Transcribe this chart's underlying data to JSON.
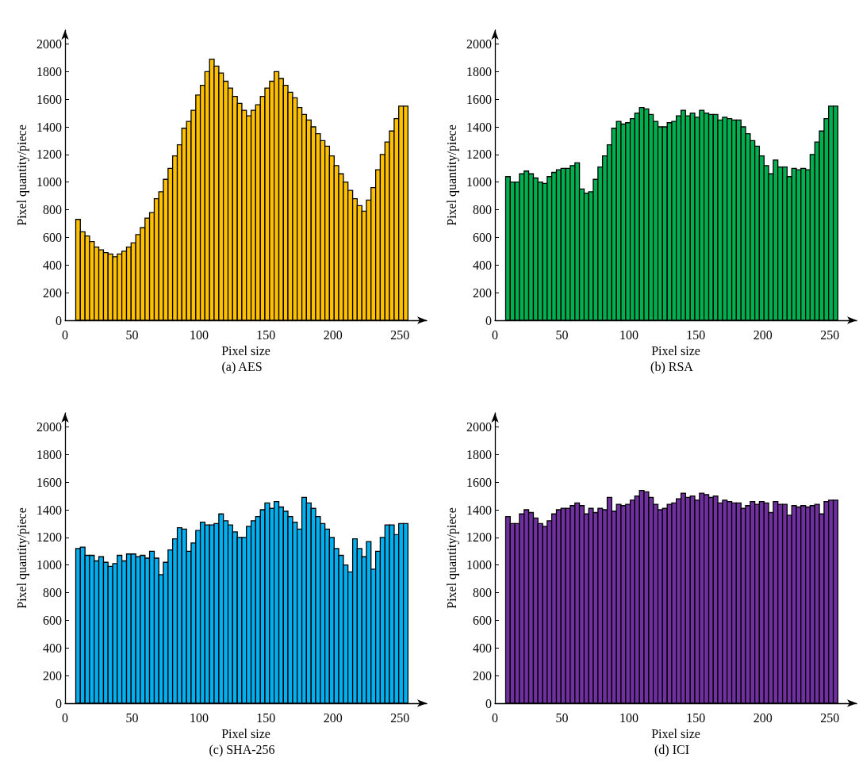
{
  "chart_data": [
    {
      "type": "histogram",
      "title": "(a) AES",
      "xlabel": "Pixel size",
      "ylabel": "Pixel quantity/piece",
      "color": "#ffc000",
      "xlim": [
        0,
        270
      ],
      "xticks": [
        0,
        50,
        100,
        150,
        200,
        250
      ],
      "ylim": [
        0,
        2100
      ],
      "yticks": [
        0,
        200,
        400,
        600,
        800,
        1000,
        1200,
        1400,
        1600,
        1800,
        2000
      ],
      "bins": [
        8.0,
        11.4,
        14.9,
        18.3,
        21.8,
        25.2,
        28.7,
        32.1,
        35.6,
        39.0,
        42.4,
        45.9,
        49.3,
        52.8,
        56.2,
        59.7,
        63.1,
        66.6,
        70.0,
        73.4,
        76.9,
        80.3,
        83.8,
        87.2,
        90.7,
        94.1,
        97.6,
        101.0,
        104.4,
        107.9,
        111.3,
        114.8,
        118.2,
        121.7,
        125.1,
        128.6,
        132.0,
        135.4,
        138.9,
        142.3,
        145.8,
        149.2,
        152.7,
        156.1,
        159.6,
        163.0,
        166.4,
        169.9,
        173.3,
        176.8,
        180.2,
        183.7,
        187.1,
        190.6,
        194.0,
        197.4,
        200.9,
        204.3,
        207.8,
        211.2,
        214.7,
        218.1,
        221.6,
        225.0,
        228.4,
        231.9,
        235.3,
        238.8,
        242.2,
        245.7,
        249.1,
        252.6,
        256.0
      ],
      "values": [
        730,
        640,
        610,
        570,
        530,
        510,
        490,
        480,
        460,
        480,
        500,
        530,
        560,
        620,
        670,
        740,
        780,
        880,
        930,
        1020,
        1100,
        1190,
        1270,
        1390,
        1440,
        1520,
        1630,
        1700,
        1800,
        1890,
        1840,
        1790,
        1730,
        1680,
        1620,
        1570,
        1520,
        1480,
        1520,
        1560,
        1620,
        1680,
        1730,
        1800,
        1750,
        1700,
        1650,
        1610,
        1540,
        1490,
        1450,
        1400,
        1350,
        1300,
        1260,
        1190,
        1120,
        1060,
        1000,
        940,
        880,
        830,
        790,
        870,
        960,
        1090,
        1200,
        1290,
        1370,
        1460,
        1550,
        1550
      ]
    },
    {
      "type": "histogram",
      "title": "(b) RSA",
      "xlabel": "Pixel size",
      "ylabel": "Pixel quantity/piece",
      "color": "#00b050",
      "xlim": [
        0,
        270
      ],
      "xticks": [
        0,
        50,
        100,
        150,
        200,
        250
      ],
      "ylim": [
        0,
        2100
      ],
      "yticks": [
        0,
        200,
        400,
        600,
        800,
        1000,
        1200,
        1400,
        1600,
        1800,
        2000
      ],
      "bins": [
        8.0,
        11.4,
        14.9,
        18.3,
        21.8,
        25.2,
        28.7,
        32.1,
        35.6,
        39.0,
        42.4,
        45.9,
        49.3,
        52.8,
        56.2,
        59.7,
        63.1,
        66.6,
        70.0,
        73.4,
        76.9,
        80.3,
        83.8,
        87.2,
        90.7,
        94.1,
        97.6,
        101.0,
        104.4,
        107.9,
        111.3,
        114.8,
        118.2,
        121.7,
        125.1,
        128.6,
        132.0,
        135.4,
        138.9,
        142.3,
        145.8,
        149.2,
        152.7,
        156.1,
        159.6,
        163.0,
        166.4,
        169.9,
        173.3,
        176.8,
        180.2,
        183.7,
        187.1,
        190.6,
        194.0,
        197.4,
        200.9,
        204.3,
        207.8,
        211.2,
        214.7,
        218.1,
        221.6,
        225.0,
        228.4,
        231.9,
        235.3,
        238.8,
        242.2,
        245.7,
        249.1,
        252.6,
        256.0
      ],
      "values": [
        1040,
        1000,
        1000,
        1060,
        1080,
        1060,
        1030,
        1000,
        990,
        1040,
        1070,
        1090,
        1100,
        1100,
        1120,
        1140,
        950,
        920,
        930,
        1020,
        1110,
        1190,
        1270,
        1390,
        1440,
        1420,
        1430,
        1460,
        1500,
        1540,
        1530,
        1490,
        1440,
        1400,
        1400,
        1430,
        1440,
        1480,
        1520,
        1480,
        1500,
        1470,
        1520,
        1500,
        1490,
        1490,
        1450,
        1470,
        1460,
        1450,
        1450,
        1400,
        1350,
        1300,
        1260,
        1190,
        1120,
        1060,
        1160,
        1110,
        1110,
        1040,
        1100,
        1090,
        1100,
        1090,
        1200,
        1290,
        1370,
        1460,
        1550,
        1550
      ]
    },
    {
      "type": "histogram",
      "title": "(c) SHA-256",
      "xlabel": "Pixel size",
      "ylabel": "Pixel quantity/piece",
      "color": "#00b0f0",
      "xlim": [
        0,
        270
      ],
      "xticks": [
        0,
        50,
        100,
        150,
        200,
        250
      ],
      "ylim": [
        0,
        2100
      ],
      "yticks": [
        0,
        200,
        400,
        600,
        800,
        1000,
        1200,
        1400,
        1600,
        1800,
        2000
      ],
      "bins": [
        8.0,
        11.4,
        14.9,
        18.3,
        21.8,
        25.2,
        28.7,
        32.1,
        35.6,
        39.0,
        42.4,
        45.9,
        49.3,
        52.8,
        56.2,
        59.7,
        63.1,
        66.6,
        70.0,
        73.4,
        76.9,
        80.3,
        83.8,
        87.2,
        90.7,
        94.1,
        97.6,
        101.0,
        104.4,
        107.9,
        111.3,
        114.8,
        118.2,
        121.7,
        125.1,
        128.6,
        132.0,
        135.4,
        138.9,
        142.3,
        145.8,
        149.2,
        152.7,
        156.1,
        159.6,
        163.0,
        166.4,
        169.9,
        173.3,
        176.8,
        180.2,
        183.7,
        187.1,
        190.6,
        194.0,
        197.4,
        200.9,
        204.3,
        207.8,
        211.2,
        214.7,
        218.1,
        221.6,
        225.0,
        228.4,
        231.9,
        235.3,
        238.8,
        242.2,
        245.7,
        249.1,
        252.6,
        256.0
      ],
      "values": [
        1120,
        1130,
        1070,
        1070,
        1030,
        1060,
        1020,
        990,
        1010,
        1070,
        1030,
        1080,
        1080,
        1060,
        1070,
        1050,
        1100,
        1050,
        930,
        1020,
        1110,
        1190,
        1270,
        1260,
        1100,
        1160,
        1250,
        1310,
        1290,
        1290,
        1300,
        1370,
        1320,
        1290,
        1240,
        1200,
        1200,
        1280,
        1320,
        1350,
        1400,
        1450,
        1410,
        1460,
        1420,
        1390,
        1350,
        1310,
        1260,
        1490,
        1450,
        1410,
        1350,
        1300,
        1260,
        1200,
        1120,
        1070,
        1000,
        950,
        1190,
        1120,
        1060,
        1170,
        970,
        1100,
        1200,
        1290,
        1290,
        1220,
        1300,
        1300
      ]
    },
    {
      "type": "histogram",
      "title": "(d) ICI",
      "xlabel": "Pixel size",
      "ylabel": "Pixel quantity/piece",
      "color": "#7030a0",
      "xlim": [
        0,
        270
      ],
      "xticks": [
        0,
        50,
        100,
        150,
        200,
        250
      ],
      "ylim": [
        0,
        2100
      ],
      "yticks": [
        0,
        200,
        400,
        600,
        800,
        1000,
        1200,
        1400,
        1600,
        1800,
        2000
      ],
      "bins": [
        8.0,
        11.4,
        14.9,
        18.3,
        21.8,
        25.2,
        28.7,
        32.1,
        35.6,
        39.0,
        42.4,
        45.9,
        49.3,
        52.8,
        56.2,
        59.7,
        63.1,
        66.6,
        70.0,
        73.4,
        76.9,
        80.3,
        83.8,
        87.2,
        90.7,
        94.1,
        97.6,
        101.0,
        104.4,
        107.9,
        111.3,
        114.8,
        118.2,
        121.7,
        125.1,
        128.6,
        132.0,
        135.4,
        138.9,
        142.3,
        145.8,
        149.2,
        152.7,
        156.1,
        159.6,
        163.0,
        166.4,
        169.9,
        173.3,
        176.8,
        180.2,
        183.7,
        187.1,
        190.6,
        194.0,
        197.4,
        200.9,
        204.3,
        207.8,
        211.2,
        214.7,
        218.1,
        221.6,
        225.0,
        228.4,
        231.9,
        235.3,
        238.8,
        242.2,
        245.7,
        249.1,
        252.6,
        256.0
      ],
      "values": [
        1350,
        1300,
        1300,
        1370,
        1400,
        1380,
        1340,
        1300,
        1280,
        1320,
        1370,
        1400,
        1410,
        1410,
        1430,
        1450,
        1430,
        1370,
        1410,
        1380,
        1410,
        1400,
        1490,
        1390,
        1440,
        1430,
        1440,
        1470,
        1500,
        1540,
        1530,
        1490,
        1440,
        1400,
        1410,
        1440,
        1450,
        1480,
        1520,
        1490,
        1500,
        1470,
        1520,
        1510,
        1490,
        1500,
        1450,
        1470,
        1460,
        1450,
        1450,
        1410,
        1430,
        1460,
        1440,
        1460,
        1450,
        1380,
        1460,
        1440,
        1440,
        1360,
        1430,
        1420,
        1430,
        1420,
        1430,
        1440,
        1370,
        1460,
        1470,
        1470
      ]
    }
  ]
}
